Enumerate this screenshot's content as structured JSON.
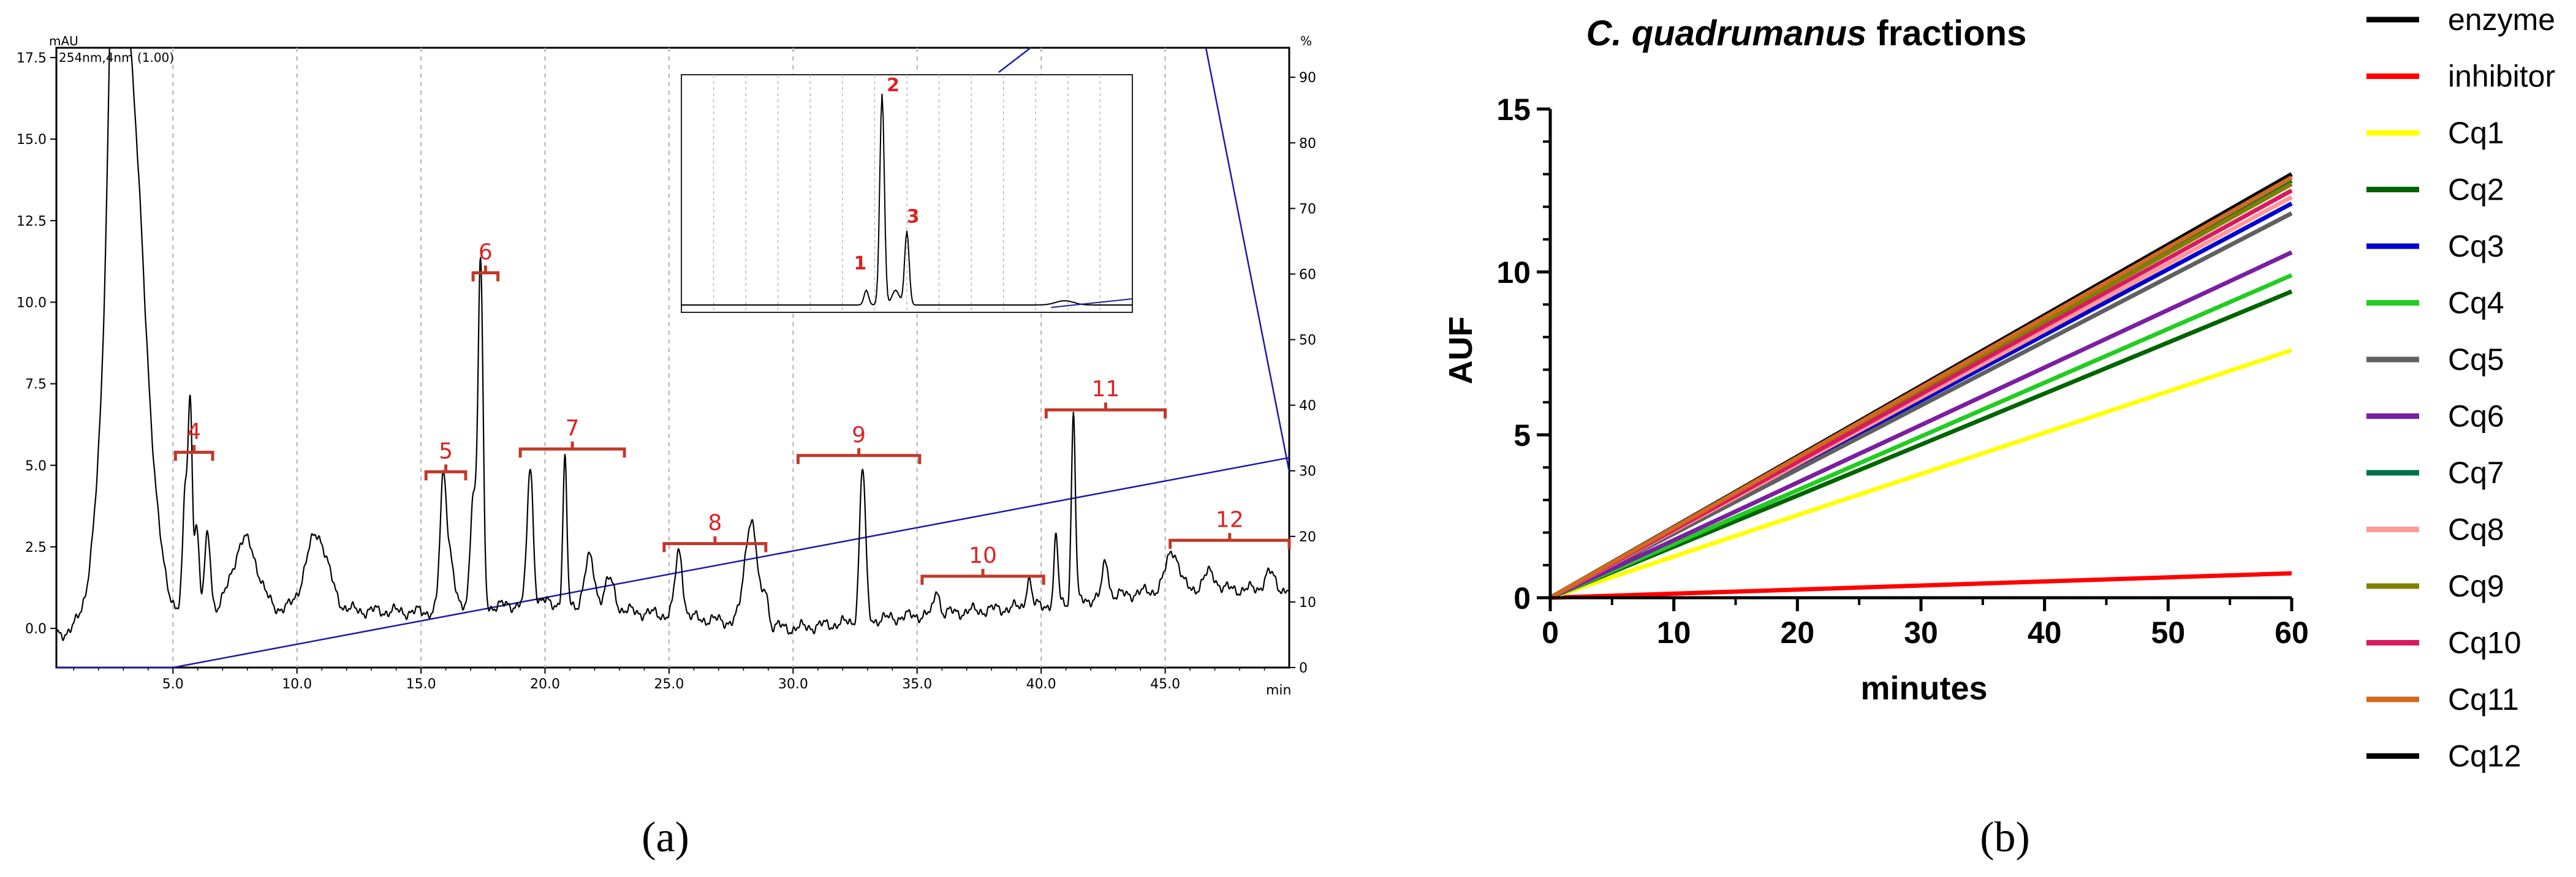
{
  "panels": {
    "a_caption": "(a)",
    "b_caption": "(b)"
  },
  "chart_data": [
    {
      "type": "line",
      "panel": "(a)",
      "description_text": {
        "ylabel_left": "mAU",
        "ylabel_right": "%",
        "detector_label": "254nm,4nm (1.00)",
        "xlabel": "min"
      },
      "xlim": [
        0.3,
        50.0
      ],
      "ylim": [
        -1.2,
        17.8
      ],
      "x_ticks": [
        "5.0",
        "10.0",
        "15.0",
        "20.0",
        "25.0",
        "30.0",
        "35.0",
        "40.0",
        "45.0"
      ],
      "x_tick_values": [
        5,
        10,
        15,
        20,
        25,
        30,
        35,
        40,
        45
      ],
      "y_ticks_left": [
        "0.0",
        "2.5",
        "5.0",
        "7.5",
        "10.0",
        "12.5",
        "15.0",
        "17.5"
      ],
      "y_tick_values_left": [
        0,
        2.5,
        5,
        7.5,
        10,
        12.5,
        15,
        17.5
      ],
      "y_ticks_right": [
        "0",
        "10",
        "20",
        "30",
        "40",
        "50",
        "60",
        "70",
        "80",
        "90"
      ],
      "y_tick_values_right": [
        0,
        10,
        20,
        30,
        40,
        50,
        60,
        70,
        80,
        90
      ],
      "gradient_percent": [
        [
          0.3,
          0
        ],
        [
          5.0,
          0
        ],
        [
          50.0,
          32
        ]
      ],
      "baseline": [
        [
          0.3,
          -0.2
        ],
        [
          5.0,
          0.4
        ],
        [
          10,
          0.6
        ],
        [
          15,
          0.5
        ],
        [
          20,
          0.8
        ],
        [
          25,
          0.4
        ],
        [
          30,
          0.0
        ],
        [
          35,
          0.4
        ],
        [
          40,
          0.7
        ],
        [
          45,
          1.2
        ],
        [
          50,
          1.2
        ]
      ],
      "peaks": [
        {
          "rt": 3.1,
          "height": 17.8,
          "width": 0.7
        },
        {
          "rt": 2.7,
          "height": 10.8,
          "width": 0.25
        },
        {
          "rt": 5.7,
          "height": 6.1,
          "width": 0.08
        },
        {
          "rt": 5.5,
          "height": 3.8,
          "width": 0.1
        },
        {
          "rt": 5.95,
          "height": 2.7,
          "width": 0.1
        },
        {
          "rt": 6.4,
          "height": 2.4,
          "width": 0.12
        },
        {
          "rt": 7.9,
          "height": 2.2,
          "width": 0.5
        },
        {
          "rt": 10.8,
          "height": 2.3,
          "width": 0.45
        },
        {
          "rt": 15.9,
          "height": 4.0,
          "width": 0.13
        },
        {
          "rt": 16.2,
          "height": 1.5,
          "width": 0.15
        },
        {
          "rt": 17.4,
          "height": 10.5,
          "width": 0.1
        },
        {
          "rt": 17.1,
          "height": 3.5,
          "width": 0.12
        },
        {
          "rt": 19.4,
          "height": 4.2,
          "width": 0.12
        },
        {
          "rt": 20.8,
          "height": 4.4,
          "width": 0.08
        },
        {
          "rt": 21.8,
          "height": 1.5,
          "width": 0.2
        },
        {
          "rt": 22.6,
          "height": 0.9,
          "width": 0.2
        },
        {
          "rt": 25.4,
          "height": 2.0,
          "width": 0.15
        },
        {
          "rt": 28.3,
          "height": 3.2,
          "width": 0.25
        },
        {
          "rt": 28.9,
          "height": 1.0,
          "width": 0.1
        },
        {
          "rt": 32.8,
          "height": 4.7,
          "width": 0.12
        },
        {
          "rt": 35.8,
          "height": 0.8,
          "width": 0.1
        },
        {
          "rt": 39.5,
          "height": 0.9,
          "width": 0.1
        },
        {
          "rt": 40.6,
          "height": 2.0,
          "width": 0.08
        },
        {
          "rt": 41.3,
          "height": 5.8,
          "width": 0.08
        },
        {
          "rt": 42.6,
          "height": 1.1,
          "width": 0.12
        },
        {
          "rt": 45.3,
          "height": 1.2,
          "width": 0.25
        },
        {
          "rt": 46.8,
          "height": 0.5,
          "width": 0.25
        },
        {
          "rt": 49.2,
          "height": 0.5,
          "width": 0.2
        }
      ],
      "fraction_brackets": [
        {
          "label": "4",
          "start": 5.1,
          "end": 6.6,
          "level": 5.4
        },
        {
          "label": "5",
          "start": 15.2,
          "end": 16.8,
          "level": 4.8
        },
        {
          "label": "6",
          "start": 17.1,
          "end": 18.1,
          "level": 10.9
        },
        {
          "label": "7",
          "start": 19.0,
          "end": 23.2,
          "level": 5.5
        },
        {
          "label": "8",
          "start": 24.8,
          "end": 28.9,
          "level": 2.6
        },
        {
          "label": "9",
          "start": 30.2,
          "end": 35.1,
          "level": 5.3
        },
        {
          "label": "10",
          "start": 35.2,
          "end": 40.1,
          "level": 1.6
        },
        {
          "label": "11",
          "start": 40.2,
          "end": 45.0,
          "level": 6.7
        },
        {
          "label": "12",
          "start": 45.2,
          "end": 50.0,
          "level": 2.7
        }
      ],
      "inset": {
        "peak_labels": [
          "1",
          "2",
          "3"
        ],
        "peaks": [
          {
            "label": "1",
            "rel_pos": 0.41,
            "rel_height": 0.07
          },
          {
            "label": "2",
            "rel_pos": 0.445,
            "rel_height": 1.0
          },
          {
            "label": "3",
            "rel_pos": 0.5,
            "rel_height": 0.35
          }
        ]
      }
    },
    {
      "type": "line",
      "panel": "(b)",
      "title": "C. quadrumanus fractions",
      "title_italic_part": "C. quadrumanus",
      "title_normal_part": " fractions",
      "xlabel": "minutes",
      "ylabel": "AUF",
      "xlim": [
        0,
        60
      ],
      "ylim": [
        0,
        15
      ],
      "x_ticks": [
        "0",
        "10",
        "20",
        "30",
        "40",
        "50",
        "60"
      ],
      "x_tick_values": [
        0,
        10,
        20,
        30,
        40,
        50,
        60
      ],
      "y_ticks": [
        "0",
        "5",
        "10",
        "15"
      ],
      "y_tick_values": [
        0,
        5,
        10,
        15
      ],
      "series": [
        {
          "name": "enzyme",
          "color": "#000000",
          "x": [
            0,
            60
          ],
          "values": [
            0,
            13.0
          ]
        },
        {
          "name": "inhibitor",
          "color": "#ff0000",
          "x": [
            0,
            60
          ],
          "values": [
            0,
            0.75
          ]
        },
        {
          "name": "Cq1",
          "color": "#ffff00",
          "x": [
            0,
            60
          ],
          "values": [
            0,
            7.6
          ]
        },
        {
          "name": "Cq2",
          "color": "#006400",
          "x": [
            0,
            60
          ],
          "values": [
            0,
            9.4
          ]
        },
        {
          "name": "Cq3",
          "color": "#0000cd",
          "x": [
            0,
            60
          ],
          "values": [
            0,
            12.1
          ]
        },
        {
          "name": "Cq4",
          "color": "#22cc22",
          "x": [
            0,
            60
          ],
          "values": [
            0,
            9.9
          ]
        },
        {
          "name": "Cq5",
          "color": "#606060",
          "x": [
            0,
            60
          ],
          "values": [
            0,
            11.8
          ]
        },
        {
          "name": "Cq6",
          "color": "#7b1fa2",
          "x": [
            0,
            60
          ],
          "values": [
            0,
            10.6
          ]
        },
        {
          "name": "Cq7",
          "color": "#00704a",
          "x": [
            0,
            60
          ],
          "values": [
            0,
            12.8
          ]
        },
        {
          "name": "Cq8",
          "color": "#ff9999",
          "x": [
            0,
            60
          ],
          "values": [
            0,
            12.3
          ]
        },
        {
          "name": "Cq9",
          "color": "#808000",
          "x": [
            0,
            60
          ],
          "values": [
            0,
            12.7
          ]
        },
        {
          "name": "Cq10",
          "color": "#d81b60",
          "x": [
            0,
            60
          ],
          "values": [
            0,
            12.5
          ]
        },
        {
          "name": "Cq11",
          "color": "#d2691e",
          "x": [
            0,
            60
          ],
          "values": [
            0,
            12.9
          ]
        },
        {
          "name": "Cq12",
          "color": "#000000",
          "x": [
            0,
            60
          ],
          "values": [
            0,
            13.0
          ]
        }
      ],
      "legend_position": "right"
    }
  ]
}
